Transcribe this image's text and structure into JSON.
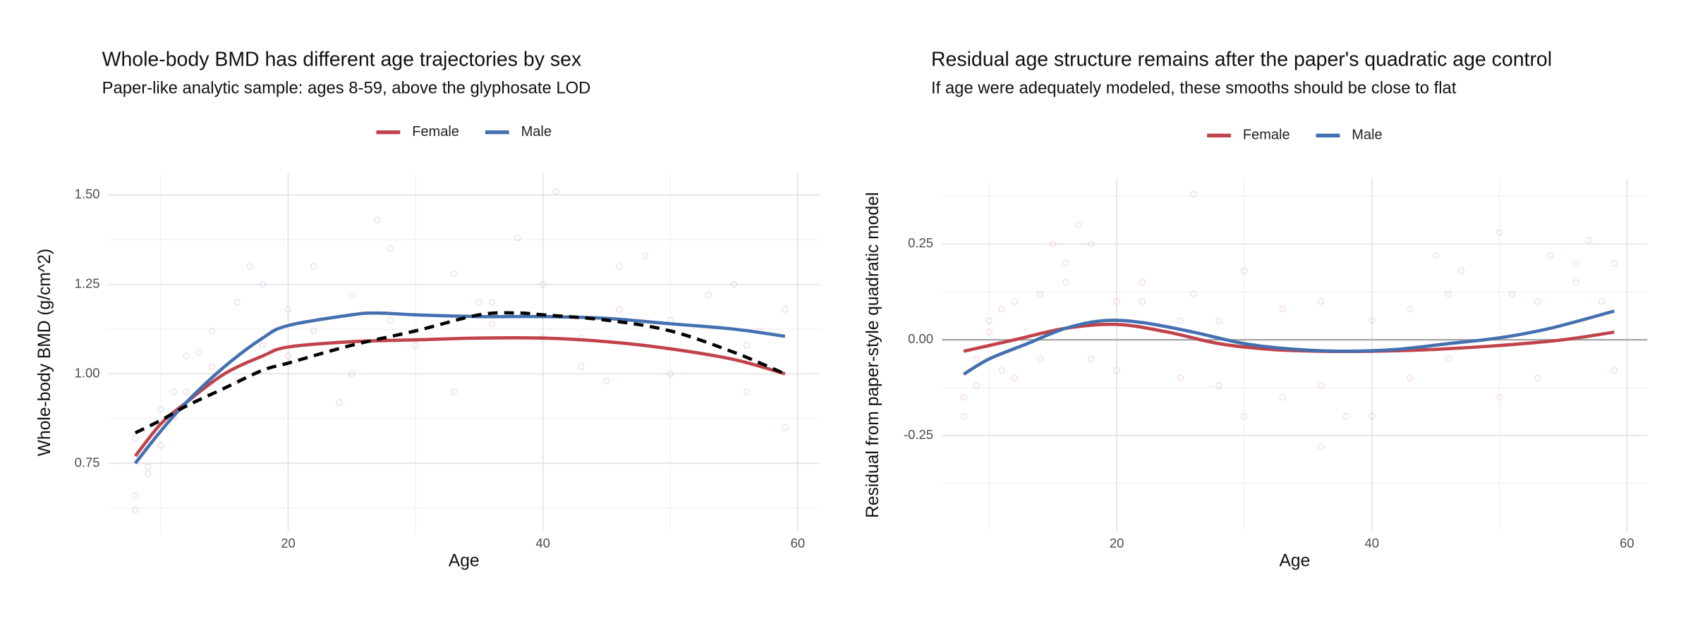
{
  "chart_data": [
    {
      "type": "line",
      "title": "Whole-body BMD has different age trajectories by sex",
      "subtitle": "Paper-like analytic sample: ages 8-59, above the glyphosate LOD",
      "x_label": "Age",
      "y_label": "Whole-body BMD (g/cm^2)",
      "xlim": [
        5.9,
        61.7
      ],
      "xticks": [
        20,
        40,
        60
      ],
      "ylim": [
        0.56,
        1.56
      ],
      "yticks": [
        {
          "value": 0.75,
          "label": "0.75"
        },
        {
          "value": 1.0,
          "label": "1.00"
        },
        {
          "value": 1.25,
          "label": "1.25"
        },
        {
          "value": 1.5,
          "label": "1.50"
        }
      ],
      "grid": true,
      "legend": "top",
      "series": [
        {
          "color": "#e8a0a8",
          "opacity": 0.35,
          "style": "points",
          "x": [
            8,
            9,
            10,
            11,
            12,
            14,
            16,
            18,
            20,
            22,
            25,
            28,
            30,
            33,
            36,
            40,
            43,
            46,
            50,
            53,
            56,
            59,
            8,
            13,
            24,
            35,
            45,
            57
          ],
          "values": [
            0.66,
            0.72,
            0.8,
            0.88,
            0.95,
            1.02,
            0.98,
            1.08,
            1.05,
            1.12,
            1.0,
            1.15,
            1.08,
            0.95,
            1.14,
            1.1,
            1.02,
            1.18,
            1.0,
            1.05,
            0.95,
            0.85,
            0.62,
            1.06,
            0.92,
            1.2,
            0.98,
            1.12
          ]
        },
        {
          "color": "#a8b8e0",
          "opacity": 0.35,
          "style": "points",
          "x": [
            8,
            9,
            10,
            11,
            12,
            14,
            16,
            18,
            20,
            22,
            25,
            28,
            30,
            33,
            36,
            40,
            43,
            46,
            50,
            53,
            56,
            59,
            17,
            27,
            38,
            48,
            41,
            55
          ],
          "values": [
            0.82,
            0.74,
            0.9,
            0.95,
            1.05,
            1.12,
            1.2,
            1.25,
            1.18,
            1.3,
            1.22,
            1.35,
            1.12,
            1.28,
            1.2,
            1.25,
            1.1,
            1.3,
            1.15,
            1.22,
            1.08,
            1.18,
            1.3,
            1.43,
            1.38,
            1.33,
            1.51,
            1.25
          ]
        },
        {
          "name": "Female",
          "color": "#c1424a",
          "x": [
            8,
            10,
            12,
            15,
            18,
            20,
            25,
            30,
            35,
            40,
            45,
            50,
            55,
            59
          ],
          "values": [
            0.77,
            0.86,
            0.92,
            1.0,
            1.05,
            1.075,
            1.09,
            1.095,
            1.1,
            1.1,
            1.09,
            1.07,
            1.04,
            1.0
          ]
        },
        {
          "name": "Male",
          "color": "#4470b0",
          "x": [
            8,
            10,
            12,
            15,
            18,
            20,
            25,
            27,
            30,
            35,
            40,
            45,
            50,
            55,
            59
          ],
          "values": [
            0.75,
            0.84,
            0.92,
            1.02,
            1.1,
            1.135,
            1.165,
            1.17,
            1.165,
            1.16,
            1.16,
            1.155,
            1.14,
            1.125,
            1.105
          ]
        },
        {
          "color": "#000000",
          "dash": true,
          "x": [
            8,
            10,
            12,
            15,
            18,
            20,
            25,
            30,
            35,
            38,
            40,
            45,
            50,
            55,
            59
          ],
          "values": [
            0.835,
            0.87,
            0.91,
            0.96,
            1.01,
            1.03,
            1.08,
            1.12,
            1.165,
            1.17,
            1.165,
            1.15,
            1.12,
            1.06,
            1.0
          ]
        }
      ]
    },
    {
      "type": "line",
      "title": "Residual age structure remains after the paper's quadratic age control",
      "subtitle": "If age were adequately modeled, these smooths should be close to flat",
      "x_label": "Age",
      "y_label": "Residual from paper-style quadratic model",
      "xlim": [
        6.3,
        61.6
      ],
      "xticks": [
        20,
        40,
        60
      ],
      "ylim": [
        -0.5,
        0.42
      ],
      "yticks": [
        -0.25,
        {
          "value": 0.0,
          "label": "0.00"
        },
        0.25
      ],
      "grid": true,
      "legend": "top",
      "reference_line": 0,
      "series": [
        {
          "color": "#e8a0a8",
          "opacity": 0.35,
          "style": "points",
          "x": [
            8,
            9,
            10,
            11,
            12,
            14,
            16,
            18,
            20,
            22,
            25,
            28,
            30,
            33,
            36,
            40,
            43,
            46,
            50,
            53,
            56,
            59,
            15,
            26,
            38,
            47,
            54,
            58
          ],
          "values": [
            -0.15,
            -0.05,
            0.02,
            0.08,
            -0.1,
            0.12,
            0.2,
            -0.05,
            0.1,
            0.15,
            -0.1,
            0.05,
            -0.2,
            0.08,
            -0.12,
            0.05,
            -0.1,
            0.12,
            -0.15,
            0.1,
            0.2,
            -0.08,
            0.25,
            0.12,
            -0.2,
            0.18,
            0.22,
            0.1
          ]
        },
        {
          "color": "#a8b8e0",
          "opacity": 0.35,
          "style": "points",
          "x": [
            8,
            9,
            10,
            11,
            12,
            14,
            16,
            18,
            20,
            22,
            25,
            28,
            30,
            33,
            36,
            40,
            43,
            46,
            50,
            53,
            56,
            59,
            17,
            26,
            36,
            45,
            51,
            57
          ],
          "values": [
            -0.2,
            -0.12,
            0.05,
            -0.08,
            0.1,
            -0.05,
            0.15,
            0.25,
            -0.08,
            0.1,
            0.05,
            -0.12,
            0.18,
            -0.15,
            0.1,
            -0.2,
            0.08,
            -0.05,
            0.28,
            -0.1,
            0.15,
            0.2,
            0.3,
            0.38,
            -0.28,
            0.22,
            0.12,
            0.26
          ]
        },
        {
          "name": "Female",
          "color": "#c1424a",
          "x": [
            8,
            12,
            16,
            20,
            24,
            28,
            32,
            36,
            40,
            45,
            50,
            55,
            59
          ],
          "values": [
            -0.03,
            0.0,
            0.03,
            0.04,
            0.02,
            -0.01,
            -0.025,
            -0.03,
            -0.03,
            -0.025,
            -0.015,
            0.0,
            0.02
          ]
        },
        {
          "name": "Male",
          "color": "#4470b0",
          "x": [
            8,
            10,
            13,
            16,
            19,
            22,
            26,
            30,
            34,
            38,
            42,
            46,
            50,
            54,
            59
          ],
          "values": [
            -0.09,
            -0.05,
            -0.01,
            0.03,
            0.05,
            0.045,
            0.02,
            -0.01,
            -0.025,
            -0.03,
            -0.025,
            -0.01,
            0.005,
            0.03,
            0.075
          ]
        }
      ]
    }
  ]
}
